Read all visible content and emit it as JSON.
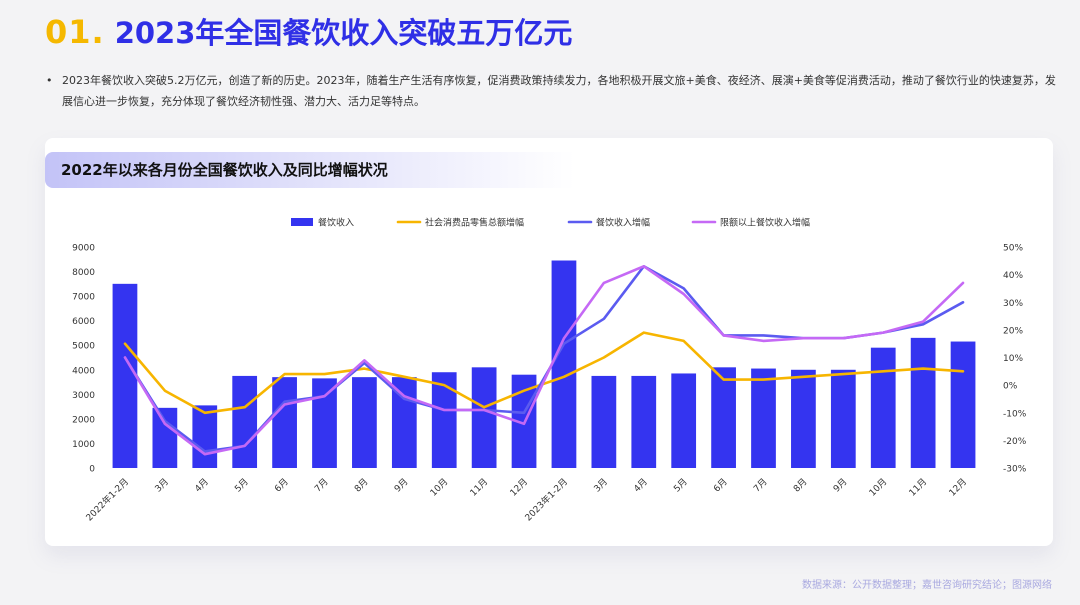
{
  "heading": {
    "number": "01.",
    "title": "2023年全国餐饮收入突破五万亿元"
  },
  "intro": {
    "bullet": "•",
    "text": "2023年餐饮收入突破5.2万亿元，创造了新的历史。2023年，随着生产生活有序恢复，促消费政策持续发力，各地积极开展文旅+美食、夜经济、展演+美食等促消费活动，推动了餐饮行业的快速复苏，发展信心进一步恢复，充分体现了餐饮经济韧性强、潜力大、活力足等特点。"
  },
  "card": {
    "title": "2022年以来各月份全国餐饮收入及同比增幅状况"
  },
  "source": "数据来源：公开数据整理；嘉世咨询研究结论；图源网络",
  "chart_data": {
    "type": "bar",
    "categories": [
      "2022年1-2月",
      "3月",
      "4月",
      "5月",
      "6月",
      "7月",
      "8月",
      "9月",
      "10月",
      "11月",
      "12月",
      "2023年1-2月",
      "3月",
      "4月",
      "5月",
      "6月",
      "7月",
      "8月",
      "9月",
      "10月",
      "11月",
      "12月"
    ],
    "series": [
      {
        "name": "餐饮收入",
        "type": "bar",
        "axis": "left",
        "color": "#3434f0",
        "values": [
          7500,
          2450,
          2550,
          3750,
          3700,
          3650,
          3700,
          3700,
          3900,
          4100,
          3800,
          8450,
          3750,
          3750,
          3850,
          4100,
          4050,
          4000,
          4000,
          4900,
          5300,
          5150
        ]
      },
      {
        "name": "社会消费品零售总额增幅",
        "type": "line",
        "axis": "right",
        "color": "#f7b500",
        "values": [
          15,
          -2,
          -10,
          -8,
          4,
          4,
          6,
          3,
          0,
          -8,
          -2,
          3,
          10,
          19,
          16,
          2,
          2,
          3,
          4,
          5,
          6,
          5
        ]
      },
      {
        "name": "餐饮收入增幅",
        "type": "line",
        "axis": "right",
        "color": "#5b5bf0",
        "values": [
          10,
          -13,
          -24,
          -22,
          -6,
          -4,
          8,
          -5,
          -9,
          -9,
          -10,
          15,
          24,
          43,
          35,
          18,
          18,
          17,
          17,
          19,
          22,
          30
        ]
      },
      {
        "name": "限额以上餐饮收入增幅",
        "type": "line",
        "axis": "right",
        "color": "#c569f5",
        "values": [
          10,
          -14,
          -25,
          -22,
          -7,
          -4,
          9,
          -4,
          -9,
          -9,
          -14,
          17,
          37,
          43,
          33,
          18,
          16,
          17,
          17,
          19,
          23,
          37
        ]
      }
    ],
    "y_left": {
      "min": 0,
      "max": 9000,
      "ticks": [
        "0",
        "1000",
        "2000",
        "3000",
        "4000",
        "5000",
        "6000",
        "7000",
        "8000",
        "9000"
      ]
    },
    "y_right": {
      "min": -30,
      "max": 50,
      "ticks": [
        "-30%",
        "-20%",
        "-10%",
        "0%",
        "10%",
        "20%",
        "30%",
        "40%",
        "50%"
      ]
    },
    "legend_position": "top-center",
    "grid": false
  }
}
